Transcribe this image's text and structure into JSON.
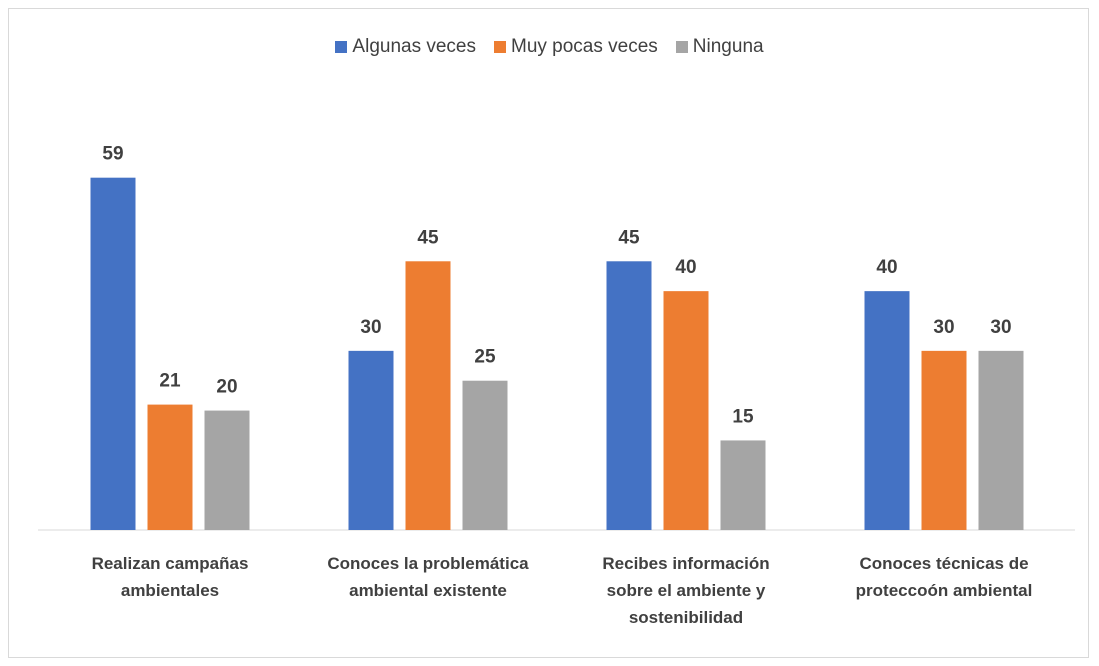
{
  "chart_data": {
    "type": "bar",
    "categories": [
      "Realizan campañas ambientales",
      "Conoces la problemática ambiental existente",
      "Recibes información sobre el ambiente y sostenibilidad",
      "Conoces técnicas de proteccoón ambiental"
    ],
    "series": [
      {
        "name": "Algunas veces",
        "color": "#4472c4",
        "values": [
          59,
          30,
          45,
          40
        ]
      },
      {
        "name": "Muy pocas veces",
        "color": "#ed7d31",
        "values": [
          21,
          45,
          40,
          30
        ]
      },
      {
        "name": "Ninguna",
        "color": "#a5a5a5",
        "values": [
          20,
          25,
          15,
          30
        ]
      }
    ],
    "ylim": [
      0,
      70
    ],
    "legend": "top"
  }
}
